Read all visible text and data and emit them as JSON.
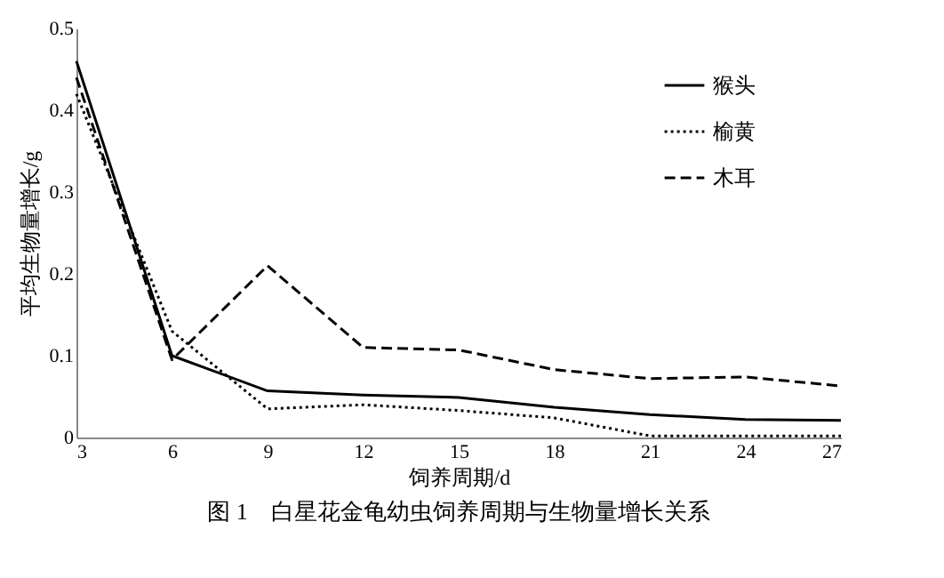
{
  "chart_data": {
    "type": "line",
    "xlabel": "饲养周期/d",
    "ylabel": "平均生物量增长/g",
    "x": [
      3,
      6,
      9,
      12,
      15,
      18,
      21,
      24,
      27
    ],
    "xlim": [
      3,
      27
    ],
    "xticks": [
      3,
      6,
      9,
      12,
      15,
      18,
      21,
      24,
      27
    ],
    "ylim": [
      0,
      0.5
    ],
    "yticks": [
      0,
      0.1,
      0.2,
      0.3,
      0.4,
      0.5
    ],
    "grid": false,
    "legend": "top right",
    "annotations": [
      "图 1　白星花金龟幼虫饲养周期与生物量增长关系"
    ],
    "series": [
      {
        "name": "猴头",
        "color": "#000000",
        "line_style": "solid",
        "values": [
          0.46,
          0.1,
          0.057,
          0.052,
          0.049,
          0.037,
          0.028,
          0.022,
          0.021
        ]
      },
      {
        "name": "榆黄",
        "color": "#000000",
        "line_style": "dotted",
        "values": [
          0.42,
          0.13,
          0.035,
          0.04,
          0.033,
          0.024,
          0.002,
          0.002,
          0.002
        ]
      },
      {
        "name": "木耳",
        "color": "#000000",
        "line_style": "dashed",
        "values": [
          0.44,
          0.095,
          0.21,
          0.11,
          0.107,
          0.083,
          0.072,
          0.074,
          0.063
        ]
      }
    ]
  }
}
